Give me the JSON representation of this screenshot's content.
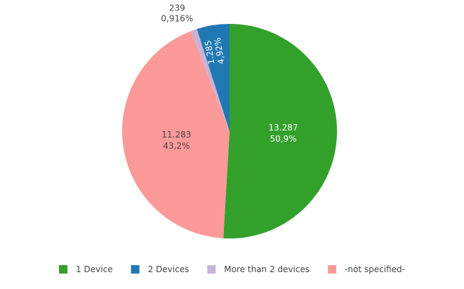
{
  "chart_data": {
    "type": "pie",
    "title": "",
    "legend_position": "bottom",
    "slices": [
      {
        "name": "1 Device",
        "value": 13287,
        "value_label": "13.287",
        "percent_label": "50,9%",
        "color": "#33a02c",
        "label_color": "#ffffff"
      },
      {
        "name": "-not specified-",
        "value": 11283,
        "value_label": "11.283",
        "percent_label": "43,2%",
        "color": "#fb9a99",
        "label_color": "#444444"
      },
      {
        "name": "More than 2 devices",
        "value": 239,
        "value_label": "239",
        "percent_label": "0,916%",
        "color": "#cab2d6",
        "label_color": "#444444"
      },
      {
        "name": "2 Devices",
        "value": 1285,
        "value_label": "1.285",
        "percent_label": "4,92%",
        "color": "#1f78b4",
        "label_color": "#ffffff"
      }
    ],
    "legend_order": [
      "1 Device",
      "2 Devices",
      "More than 2 devices",
      "-not specified-"
    ]
  }
}
